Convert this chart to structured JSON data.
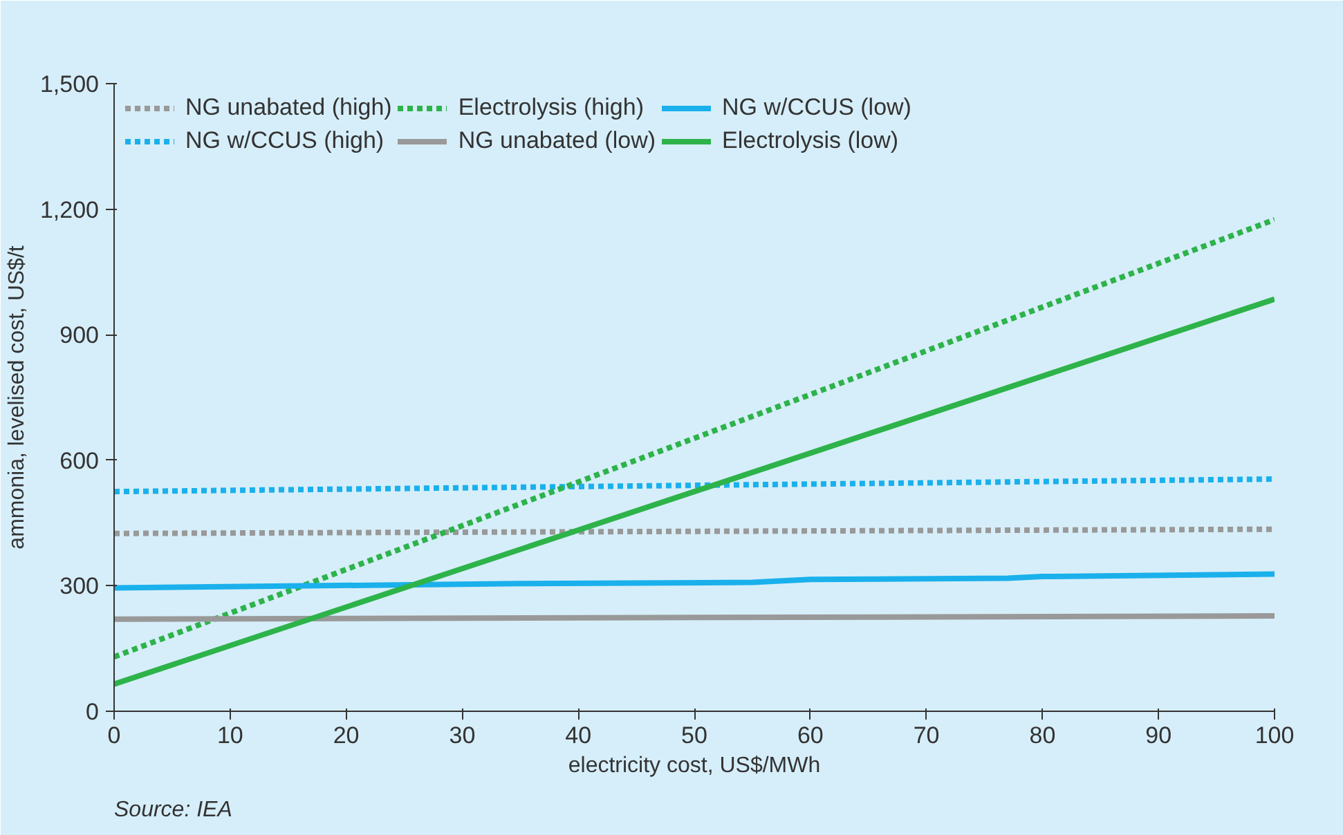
{
  "chart_data": {
    "type": "line",
    "xlabel": "electricity cost, US$/MWh",
    "ylabel": "ammonia, levelised cost, US$/t",
    "xlim": [
      0,
      100
    ],
    "ylim": [
      0,
      1500
    ],
    "xticks": [
      0,
      10,
      20,
      30,
      40,
      50,
      60,
      70,
      80,
      90,
      100
    ],
    "yticks": [
      {
        "value": 0,
        "label": "0"
      },
      {
        "value": 300,
        "label": "300"
      },
      {
        "value": 600,
        "label": "600"
      },
      {
        "value": 900,
        "label": "900"
      },
      {
        "value": 1200,
        "label": "1,200"
      },
      {
        "value": 1500,
        "label": "1,500"
      }
    ],
    "grid": false,
    "legend": "top left",
    "annotations": [
      "Source: IEA"
    ],
    "series": [
      {
        "name": "NG unabated (high)",
        "color": "#999999",
        "line_style": "dashed",
        "x": [
          0,
          100
        ],
        "values": [
          425,
          435
        ]
      },
      {
        "name": "NG w/CCUS (high)",
        "color": "#1ab0ec",
        "line_style": "dashed",
        "x": [
          0,
          100
        ],
        "values": [
          525,
          555
        ]
      },
      {
        "name": "Electrolysis (high)",
        "color": "#2db34a",
        "line_style": "dashed",
        "x": [
          0,
          100
        ],
        "values": [
          130,
          1175
        ]
      },
      {
        "name": "NG unabated (low)",
        "color": "#999999",
        "line_style": "solid",
        "x": [
          0,
          100
        ],
        "values": [
          220,
          228
        ]
      },
      {
        "name": "NG w/CCUS (low)",
        "color": "#1ab0ec",
        "line_style": "solid",
        "x": [
          0,
          35,
          55,
          60,
          77,
          80,
          100
        ],
        "values": [
          295,
          305,
          308,
          315,
          318,
          322,
          328
        ]
      },
      {
        "name": "Electrolysis (low)",
        "color": "#2db34a",
        "line_style": "solid",
        "x": [
          0,
          100
        ],
        "values": [
          65,
          985
        ]
      }
    ]
  }
}
